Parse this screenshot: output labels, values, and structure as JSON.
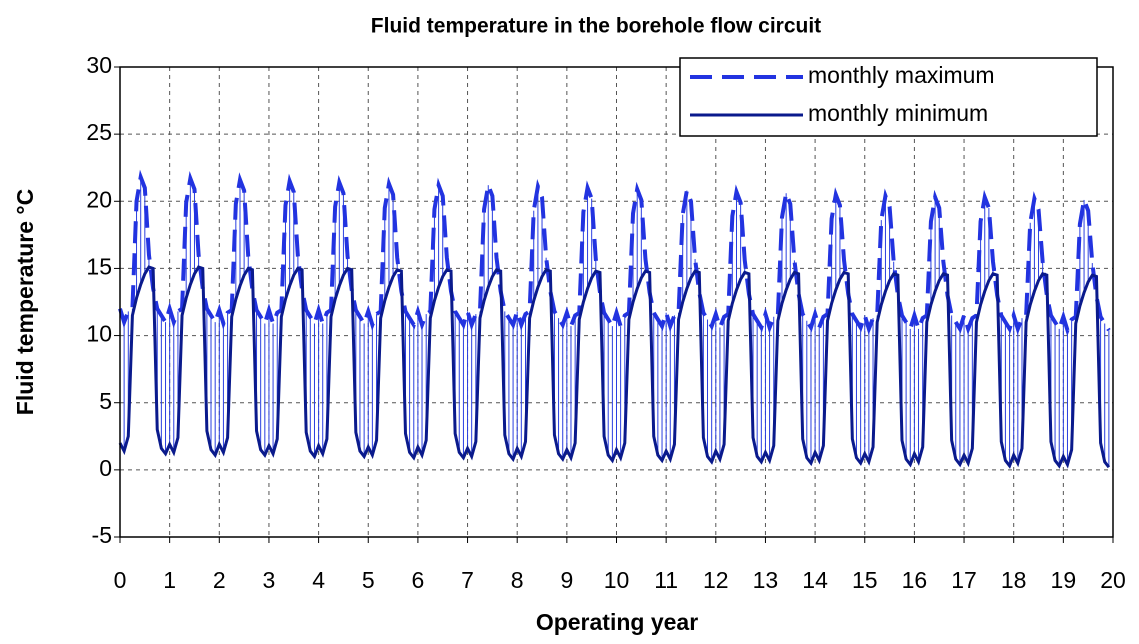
{
  "chart_data": {
    "type": "line",
    "title": "Fluid temperature in the borehole flow circuit",
    "x_label": "Operating year",
    "y_label": "Fluid temperature °C",
    "xlim": [
      0,
      20
    ],
    "xticks": [
      0,
      1,
      2,
      3,
      4,
      5,
      6,
      7,
      8,
      9,
      10,
      11,
      12,
      13,
      14,
      15,
      16,
      17,
      18,
      19,
      20
    ],
    "ylim": [
      -5,
      30
    ],
    "yticks": [
      -5,
      0,
      5,
      10,
      15,
      20,
      25,
      30
    ],
    "grid": true,
    "legend": "upper right",
    "hatch_color": "#2a3fe0",
    "x": [
      0,
      0.083,
      0.167,
      0.25,
      0.333,
      0.417,
      0.5,
      0.583,
      0.667,
      0.75,
      0.833,
      0.917,
      1,
      1.083,
      1.167,
      1.25,
      1.333,
      1.417,
      1.5,
      1.583,
      1.667,
      1.75,
      1.833,
      1.917,
      2,
      2.083,
      2.167,
      2.25,
      2.333,
      2.417,
      2.5,
      2.583,
      2.667,
      2.75,
      2.833,
      2.917,
      3,
      3.083,
      3.167,
      3.25,
      3.333,
      3.417,
      3.5,
      3.583,
      3.667,
      3.75,
      3.833,
      3.917,
      4,
      4.083,
      4.167,
      4.25,
      4.333,
      4.417,
      4.5,
      4.583,
      4.667,
      4.75,
      4.833,
      4.917,
      5,
      5.083,
      5.167,
      5.25,
      5.333,
      5.417,
      5.5,
      5.583,
      5.667,
      5.75,
      5.833,
      5.917,
      6,
      6.083,
      6.167,
      6.25,
      6.333,
      6.417,
      6.5,
      6.583,
      6.667,
      6.75,
      6.833,
      6.917,
      7,
      7.083,
      7.167,
      7.25,
      7.333,
      7.417,
      7.5,
      7.583,
      7.667,
      7.75,
      7.833,
      7.917,
      8,
      8.083,
      8.167,
      8.25,
      8.333,
      8.417,
      8.5,
      8.583,
      8.667,
      8.75,
      8.833,
      8.917,
      9,
      9.083,
      9.167,
      9.25,
      9.333,
      9.417,
      9.5,
      9.583,
      9.667,
      9.75,
      9.833,
      9.917,
      10,
      10.083,
      10.167,
      10.25,
      10.333,
      10.417,
      10.5,
      10.583,
      10.667,
      10.75,
      10.833,
      10.917,
      11,
      11.083,
      11.167,
      11.25,
      11.333,
      11.417,
      11.5,
      11.583,
      11.667,
      11.75,
      11.833,
      11.917,
      12,
      12.083,
      12.167,
      12.25,
      12.333,
      12.417,
      12.5,
      12.583,
      12.667,
      12.75,
      12.833,
      12.917,
      13,
      13.083,
      13.167,
      13.25,
      13.333,
      13.417,
      13.5,
      13.583,
      13.667,
      13.75,
      13.833,
      13.917,
      14,
      14.083,
      14.167,
      14.25,
      14.333,
      14.417,
      14.5,
      14.583,
      14.667,
      14.75,
      14.833,
      14.917,
      15,
      15.083,
      15.167,
      15.25,
      15.333,
      15.417,
      15.5,
      15.583,
      15.667,
      15.75,
      15.833,
      15.917,
      16,
      16.083,
      16.167,
      16.25,
      16.333,
      16.417,
      16.5,
      16.583,
      16.667,
      16.75,
      16.833,
      16.917,
      17,
      17.083,
      17.167,
      17.25,
      17.333,
      17.417,
      17.5,
      17.583,
      17.667,
      17.75,
      17.833,
      17.917,
      18,
      18.083,
      18.167,
      18.25,
      18.333,
      18.417,
      18.5,
      18.583,
      18.667,
      18.75,
      18.833,
      18.917,
      19,
      19.083,
      19.167,
      19.25,
      19.333,
      19.417,
      19.5,
      19.583,
      19.667,
      19.75,
      19.833,
      19.917
    ],
    "series": [
      {
        "name": "monthly maximum",
        "color": "#2233e0",
        "dash": true,
        "values": [
          12.0,
          11.0,
          11.8,
          12.0,
          20.0,
          21.8,
          21.0,
          16.0,
          13.5,
          12.0,
          11.5,
          11.0,
          12.0,
          11.0,
          11.8,
          12.0,
          19.9,
          21.7,
          20.9,
          16.0,
          13.5,
          12.0,
          11.5,
          11.0,
          11.9,
          10.9,
          11.7,
          11.9,
          19.8,
          21.6,
          20.8,
          15.9,
          13.4,
          11.9,
          11.4,
          10.9,
          11.9,
          10.9,
          11.7,
          11.9,
          19.7,
          21.5,
          20.7,
          15.9,
          13.4,
          11.9,
          11.4,
          10.9,
          11.9,
          10.9,
          11.7,
          11.9,
          19.6,
          21.4,
          20.6,
          15.9,
          13.4,
          11.9,
          11.4,
          10.9,
          11.8,
          10.8,
          11.6,
          11.8,
          19.5,
          21.3,
          20.5,
          15.8,
          13.3,
          11.8,
          11.3,
          10.8,
          11.8,
          10.8,
          11.6,
          11.8,
          19.4,
          21.2,
          20.4,
          15.8,
          13.3,
          11.8,
          11.3,
          10.8,
          11.8,
          10.8,
          11.6,
          11.8,
          19.4,
          21.2,
          20.4,
          15.8,
          13.3,
          11.8,
          11.3,
          10.8,
          11.8,
          10.8,
          11.6,
          11.8,
          19.3,
          21.1,
          20.3,
          15.8,
          13.3,
          11.8,
          11.3,
          10.8,
          11.7,
          10.7,
          11.5,
          11.7,
          19.2,
          21.0,
          20.2,
          15.7,
          13.2,
          11.7,
          11.2,
          10.7,
          11.7,
          10.7,
          11.5,
          11.7,
          19.1,
          20.9,
          20.1,
          15.7,
          13.2,
          11.7,
          11.2,
          10.7,
          11.7,
          10.7,
          11.5,
          11.7,
          19.0,
          20.8,
          20.0,
          15.7,
          13.2,
          11.7,
          11.2,
          10.7,
          11.6,
          10.6,
          11.4,
          11.6,
          18.9,
          20.7,
          19.9,
          15.6,
          13.1,
          11.6,
          11.1,
          10.6,
          11.6,
          10.6,
          11.4,
          11.6,
          18.8,
          20.6,
          19.8,
          15.6,
          13.1,
          11.6,
          11.1,
          10.6,
          11.6,
          10.6,
          11.4,
          11.6,
          18.7,
          20.5,
          19.7,
          15.6,
          13.1,
          11.6,
          11.1,
          10.6,
          11.5,
          10.5,
          11.3,
          11.5,
          18.6,
          20.4,
          19.6,
          15.5,
          13.0,
          11.5,
          11.0,
          10.5,
          11.5,
          10.5,
          11.3,
          11.5,
          18.5,
          20.3,
          19.5,
          15.5,
          13.0,
          11.5,
          11.0,
          10.5,
          11.5,
          10.5,
          11.3,
          11.5,
          18.5,
          20.3,
          19.5,
          15.5,
          13.0,
          11.5,
          11.0,
          10.5,
          11.5,
          10.5,
          11.3,
          11.5,
          18.4,
          20.2,
          19.4,
          15.5,
          13.0,
          11.5,
          11.0,
          10.5,
          11.4,
          10.4,
          11.2,
          11.4,
          18.3,
          20.1,
          19.3,
          15.4,
          12.9,
          11.4,
          10.9,
          10.4
        ]
      },
      {
        "name": "monthly minimum",
        "color": "#0a1a8c",
        "dash": false,
        "values": [
          2.0,
          1.4,
          2.5,
          11.5,
          12.8,
          13.8,
          14.6,
          15.1,
          15.0,
          3.0,
          1.6,
          1.2,
          1.9,
          1.3,
          2.4,
          11.5,
          12.8,
          13.8,
          14.6,
          15.1,
          15.0,
          2.9,
          1.5,
          1.1,
          1.9,
          1.3,
          2.4,
          11.4,
          12.7,
          13.7,
          14.5,
          15.0,
          14.9,
          2.9,
          1.5,
          1.1,
          1.8,
          1.2,
          2.3,
          11.4,
          12.7,
          13.7,
          14.5,
          15.0,
          14.9,
          2.8,
          1.4,
          1.0,
          1.8,
          1.2,
          2.3,
          11.4,
          12.7,
          13.7,
          14.5,
          15.0,
          14.9,
          2.8,
          1.4,
          1.0,
          1.7,
          1.1,
          2.2,
          11.3,
          12.6,
          13.6,
          14.4,
          14.9,
          14.8,
          2.7,
          1.3,
          0.9,
          1.7,
          1.1,
          2.2,
          11.3,
          12.6,
          13.6,
          14.4,
          14.9,
          14.8,
          2.7,
          1.3,
          0.9,
          1.6,
          1.0,
          2.1,
          11.3,
          12.6,
          13.6,
          14.4,
          14.9,
          14.8,
          2.6,
          1.2,
          0.8,
          1.6,
          1.0,
          2.1,
          11.3,
          12.6,
          13.6,
          14.4,
          14.9,
          14.8,
          2.6,
          1.2,
          0.8,
          1.5,
          0.9,
          2.0,
          11.2,
          12.5,
          13.5,
          14.3,
          14.8,
          14.7,
          2.5,
          1.1,
          0.7,
          1.5,
          0.9,
          2.0,
          11.2,
          12.5,
          13.5,
          14.3,
          14.8,
          14.7,
          2.5,
          1.1,
          0.7,
          1.4,
          0.8,
          1.9,
          11.2,
          12.5,
          13.5,
          14.3,
          14.8,
          14.7,
          2.4,
          1.0,
          0.6,
          1.4,
          0.8,
          1.9,
          11.1,
          12.4,
          13.4,
          14.2,
          14.7,
          14.6,
          2.4,
          1.0,
          0.6,
          1.3,
          0.7,
          1.8,
          11.1,
          12.4,
          13.4,
          14.2,
          14.7,
          14.6,
          2.3,
          0.9,
          0.5,
          1.3,
          0.7,
          1.8,
          11.1,
          12.4,
          13.4,
          14.2,
          14.7,
          14.6,
          2.3,
          0.9,
          0.5,
          1.2,
          0.6,
          1.7,
          11.0,
          12.3,
          13.3,
          14.1,
          14.6,
          14.5,
          2.2,
          0.8,
          0.4,
          1.2,
          0.6,
          1.7,
          11.0,
          12.3,
          13.3,
          14.1,
          14.6,
          14.5,
          2.2,
          0.8,
          0.4,
          1.1,
          0.5,
          1.6,
          11.0,
          12.3,
          13.3,
          14.1,
          14.6,
          14.5,
          2.1,
          0.7,
          0.3,
          1.1,
          0.5,
          1.6,
          11.0,
          12.3,
          13.3,
          14.1,
          14.6,
          14.5,
          2.1,
          0.7,
          0.3,
          1.0,
          0.4,
          1.5,
          10.9,
          12.2,
          13.2,
          14.0,
          14.5,
          14.4,
          2.0,
          0.6,
          0.2
        ]
      }
    ]
  }
}
